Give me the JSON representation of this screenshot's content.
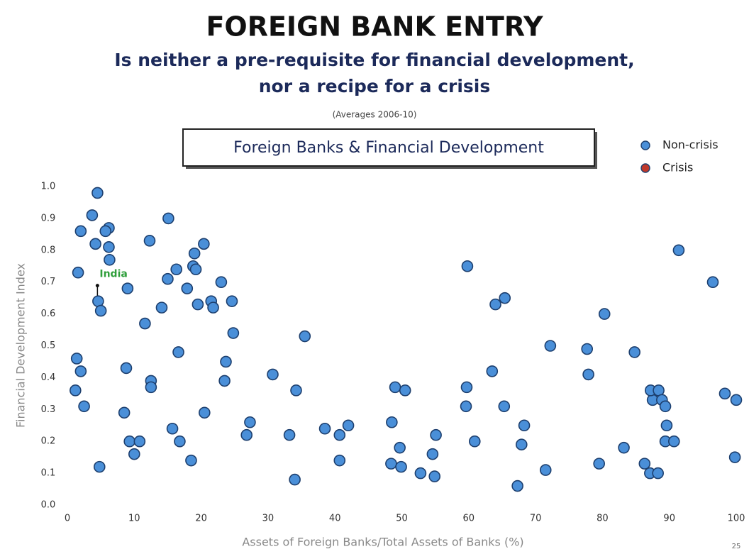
{
  "chart_data": {
    "type": "scatter",
    "title": "FOREIGN BANK ENTRY",
    "subtitle": [
      "Is neither a pre-requisite for financial development,",
      "nor a recipe for a crisis"
    ],
    "note": "(Averages 2006-10)",
    "chart_title": "Foreign Banks & Financial Development",
    "x_label": "Assets of Foreign Banks/Total Assets of Banks (%)",
    "y_label": "Financial Development Index",
    "page_number": "25",
    "annotation": {
      "text": "India",
      "x": 4.6,
      "y": 0.64,
      "color": "#2e9e3a"
    },
    "legend_position": "upper right",
    "xlim": [
      0,
      100
    ],
    "ylim": [
      0,
      1
    ],
    "xticks": [
      0,
      10,
      20,
      30,
      40,
      50,
      60,
      70,
      80,
      90,
      100
    ],
    "yticks": [
      {
        "value": 0,
        "label": "0.0"
      },
      {
        "value": 0.1,
        "label": "0.1"
      },
      {
        "value": 0.2,
        "label": "0.2"
      },
      {
        "value": 0.3,
        "label": "0.3"
      },
      {
        "value": 0.4,
        "label": "0.4"
      },
      {
        "value": 0.5,
        "label": "0.5"
      },
      {
        "value": 0.6,
        "label": "0.6"
      },
      {
        "value": 0.7,
        "label": "0.7"
      },
      {
        "value": 0.8,
        "label": "0.8"
      },
      {
        "value": 0.9,
        "label": "0.9"
      },
      {
        "value": 1,
        "label": "1.0"
      }
    ],
    "series": [
      {
        "name": "Non-crisis",
        "color": "#4a8fd8",
        "x": [
          4.5,
          3.7,
          2.0,
          6.2,
          5.7,
          4.2,
          6.2,
          6.3,
          1.6,
          9.0,
          4.6,
          5.0,
          1.4,
          2.0,
          1.2,
          2.5,
          8.8,
          12.5,
          12.5,
          8.5,
          9.3,
          10.8,
          10.0,
          4.8,
          12.3,
          15.1,
          11.6,
          14.1,
          15.0,
          16.3,
          19.0,
          20.4,
          18.8,
          19.2,
          17.9,
          19.5,
          21.5,
          21.8,
          23.0,
          24.6,
          24.8,
          23.7,
          23.5,
          16.6,
          15.7,
          16.8,
          18.5,
          20.5,
          27.3,
          26.8,
          30.7,
          34.2,
          35.5,
          33.2,
          34.0,
          38.5,
          40.7,
          42.0,
          40.7,
          49.0,
          50.5,
          48.5,
          48.4,
          49.9,
          49.7,
          52.8,
          54.9,
          55.1,
          54.6,
          59.8,
          59.7,
          59.6,
          60.9,
          64.0,
          65.4,
          63.5,
          65.3,
          68.3,
          67.9,
          67.3,
          71.5,
          72.2,
          77.7,
          77.9,
          80.3,
          79.5,
          83.2,
          84.8,
          86.3,
          87.5,
          91.4,
          96.5,
          87.2,
          88.4,
          88.9,
          89.4,
          89.6,
          89.4,
          90.7,
          87.1,
          88.3,
          98.3,
          100.0,
          99.8
        ],
        "values": [
          0.98,
          0.91,
          0.86,
          0.87,
          0.86,
          0.82,
          0.81,
          0.77,
          0.73,
          0.68,
          0.64,
          0.61,
          0.46,
          0.42,
          0.36,
          0.31,
          0.43,
          0.39,
          0.37,
          0.29,
          0.2,
          0.2,
          0.16,
          0.12,
          0.83,
          0.9,
          0.57,
          0.62,
          0.71,
          0.74,
          0.79,
          0.82,
          0.75,
          0.74,
          0.68,
          0.63,
          0.64,
          0.62,
          0.7,
          0.64,
          0.54,
          0.45,
          0.39,
          0.48,
          0.24,
          0.2,
          0.14,
          0.29,
          0.26,
          0.22,
          0.41,
          0.36,
          0.53,
          0.22,
          0.08,
          0.24,
          0.22,
          0.25,
          0.14,
          0.37,
          0.36,
          0.26,
          0.13,
          0.12,
          0.18,
          0.1,
          0.09,
          0.22,
          0.16,
          0.75,
          0.37,
          0.31,
          0.2,
          0.63,
          0.65,
          0.42,
          0.31,
          0.25,
          0.19,
          0.06,
          0.11,
          0.5,
          0.49,
          0.41,
          0.6,
          0.13,
          0.18,
          0.48,
          0.13,
          0.33,
          0.8,
          0.7,
          0.36,
          0.36,
          0.33,
          0.31,
          0.25,
          0.2,
          0.2,
          0.1,
          0.1,
          0.35,
          0.33,
          0.15
        ]
      },
      {
        "name": "Crisis",
        "color": "#c0392b",
        "x": [],
        "values": []
      }
    ]
  }
}
